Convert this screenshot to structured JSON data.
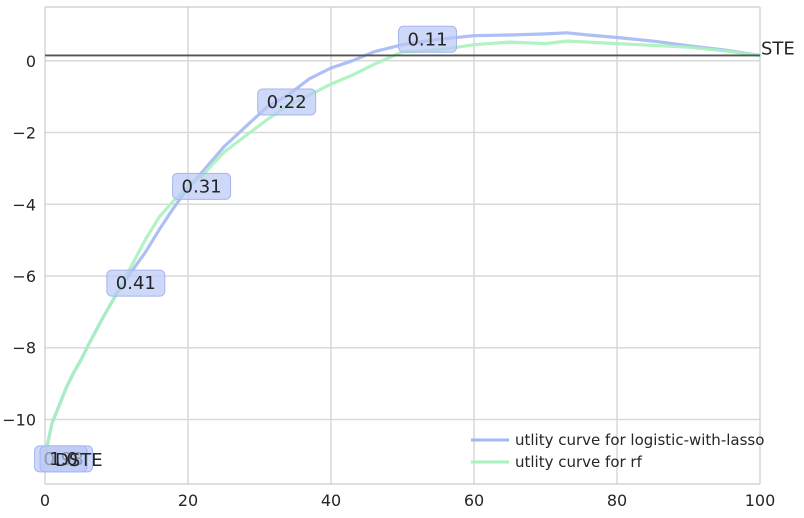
{
  "chart_data": {
    "type": "line",
    "xlim": [
      0,
      100
    ],
    "ylim": [
      -11.8,
      1.5
    ],
    "x_ticks": [
      0,
      20,
      40,
      60,
      80,
      100
    ],
    "y_ticks": [
      0,
      -2,
      -4,
      -6,
      -8,
      -10
    ],
    "x_tick_labels": [
      "0",
      "20",
      "40",
      "60",
      "80",
      "100"
    ],
    "y_tick_labels": [
      "0",
      "−2",
      "−4",
      "−6",
      "−8",
      "−10"
    ],
    "grid": true,
    "legend_position": "bottom-right",
    "series": [
      {
        "name": "utlity curve for logistic-with-lasso",
        "color": "#a4b8f4",
        "x": [
          0,
          1,
          2,
          3,
          4,
          5,
          6,
          8,
          10,
          12,
          14,
          16,
          18,
          20,
          22,
          25,
          28,
          31,
          34,
          37,
          40,
          43,
          46,
          50,
          55,
          60,
          65,
          70,
          73,
          76,
          80,
          85,
          90,
          95,
          100
        ],
        "y": [
          -11.0,
          -10.1,
          -9.6,
          -9.1,
          -8.7,
          -8.35,
          -7.95,
          -7.2,
          -6.5,
          -5.9,
          -5.35,
          -4.7,
          -4.1,
          -3.55,
          -3.1,
          -2.4,
          -1.85,
          -1.3,
          -0.95,
          -0.5,
          -0.2,
          0.0,
          0.25,
          0.45,
          0.6,
          0.7,
          0.72,
          0.75,
          0.78,
          0.72,
          0.65,
          0.55,
          0.42,
          0.3,
          0.15
        ]
      },
      {
        "name": "utlity curve for rf",
        "color": "#a9f2bc",
        "x": [
          0,
          1,
          2,
          3,
          4,
          5,
          6,
          8,
          10,
          12,
          14,
          16,
          18,
          20,
          22,
          25,
          28,
          31,
          34,
          37,
          40,
          43,
          46,
          50,
          55,
          60,
          65,
          70,
          73,
          76,
          80,
          85,
          90,
          95,
          100
        ],
        "y": [
          -11.0,
          -10.1,
          -9.6,
          -9.1,
          -8.7,
          -8.35,
          -7.95,
          -7.2,
          -6.5,
          -5.75,
          -5.0,
          -4.35,
          -3.9,
          -3.5,
          -3.2,
          -2.55,
          -2.1,
          -1.65,
          -1.25,
          -0.95,
          -0.65,
          -0.4,
          -0.1,
          0.25,
          0.3,
          0.45,
          0.52,
          0.48,
          0.55,
          0.52,
          0.48,
          0.43,
          0.38,
          0.28,
          0.15
        ]
      }
    ],
    "reference_line": {
      "y": 0.15,
      "color": "#555555",
      "label": "STE"
    },
    "annotations": [
      {
        "text": "0.11",
        "x": 53.5,
        "y": 0.6
      },
      {
        "text": "0.22",
        "x": 33.8,
        "y": -1.15
      },
      {
        "text": "0.31",
        "x": 21.9,
        "y": -3.5
      },
      {
        "text": "0.41",
        "x": 12.7,
        "y": -6.2
      },
      {
        "text": "0.98",
        "x": 2.6,
        "y": -11.1
      },
      {
        "text": "1.0",
        "x": 2.6,
        "y": -11.1
      }
    ],
    "overlay_text": {
      "text": "DSTE",
      "x": 1.4,
      "y": -11.1
    }
  }
}
